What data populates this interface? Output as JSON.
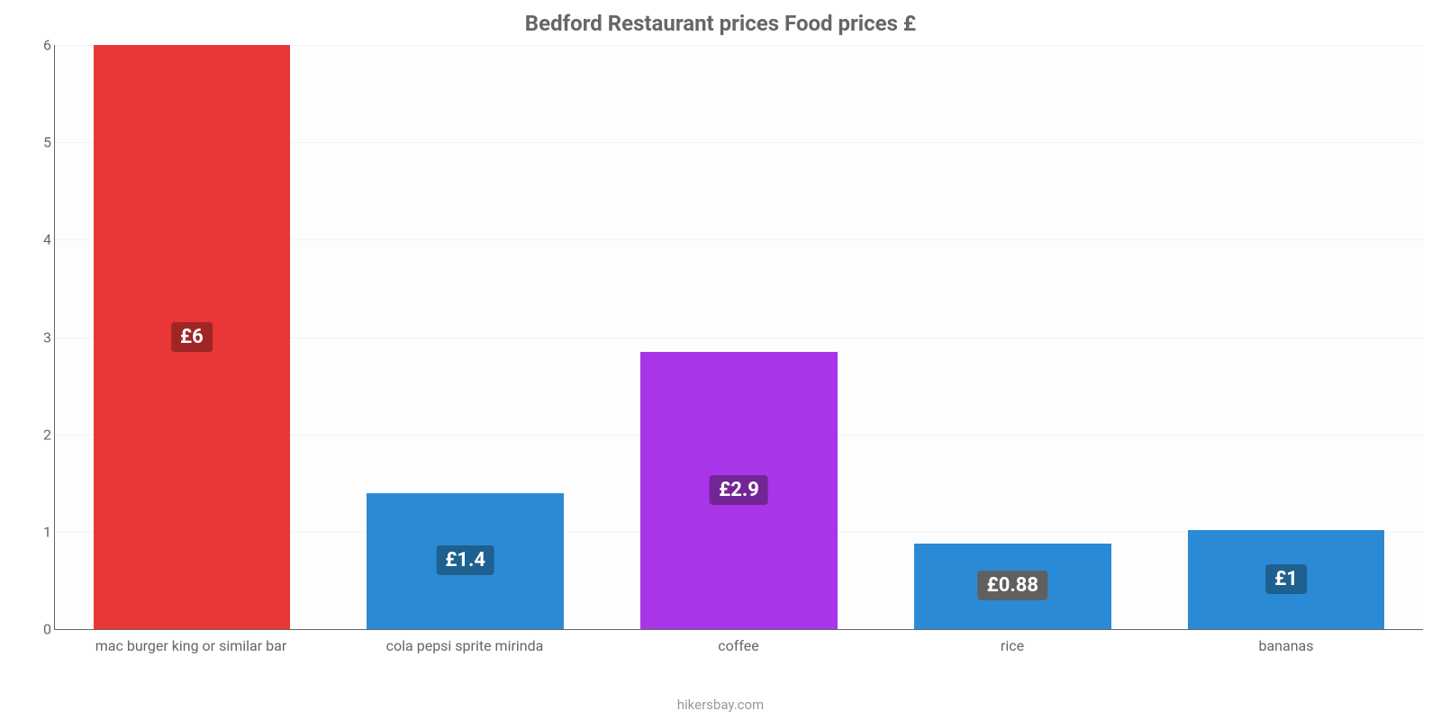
{
  "chart": {
    "type": "bar",
    "title": "Bedford Restaurant prices Food prices £",
    "title_fontsize": 24,
    "title_color": "#666666",
    "source": "hikersbay.com",
    "source_color": "#999999",
    "background_color": "#fdfdfe",
    "axis_color": "#666666",
    "grid_color": "#f2f2f2",
    "label_fontsize": 22,
    "xlabel_fontsize": 16,
    "ytick_fontsize": 16,
    "ylim": [
      0,
      6
    ],
    "ytick_step": 1,
    "bar_width": 0.72,
    "categories": [
      "mac burger king or similar bar",
      "cola pepsi sprite mirinda",
      "coffee",
      "rice",
      "bananas"
    ],
    "values": [
      6,
      1.4,
      2.85,
      0.88,
      1.02
    ],
    "value_labels": [
      "£6",
      "£1.4",
      "£2.9",
      "£0.88",
      "£1"
    ],
    "bar_colors": [
      "#e93637",
      "#2b8ad6",
      "#a835e8",
      "#2b8ad6",
      "#2b8ad6"
    ],
    "label_bg_colors": [
      "#a02525",
      "#1e608f",
      "#722696",
      "#606060",
      "#1e608f"
    ]
  }
}
